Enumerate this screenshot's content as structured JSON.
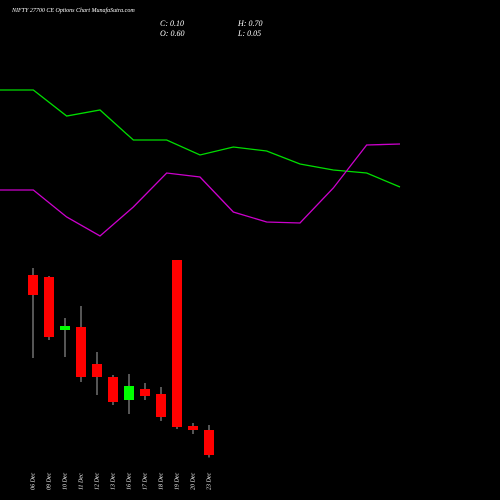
{
  "chart_data": [
    {
      "type": "candlestick",
      "title": "NIFTY 27700 CE Options Chart MunafaSutra.com",
      "annotations": [
        "C: 0.10",
        "H: 0.70",
        "O: 0.60",
        "L: 0.05"
      ],
      "categories": [
        "06 Dec",
        "09 Dec",
        "10 Dec",
        "11 Dec",
        "12 Dec",
        "13 Dec",
        "16 Dec",
        "17 Dec",
        "18 Dec",
        "19 Dec",
        "20 Dec",
        "23 Dec"
      ],
      "open": [
        3.7,
        3.66,
        2.6,
        2.66,
        1.92,
        1.66,
        1.2,
        1.42,
        1.32,
        4.0,
        0.68,
        0.6
      ],
      "high": [
        3.84,
        3.68,
        2.84,
        3.08,
        2.16,
        1.7,
        1.72,
        1.54,
        1.46,
        4.0,
        0.74,
        0.7
      ],
      "low": [
        2.04,
        2.4,
        2.06,
        1.56,
        1.3,
        1.1,
        0.92,
        1.2,
        0.78,
        0.62,
        0.52,
        0.05
      ],
      "close": [
        3.3,
        2.46,
        2.68,
        1.66,
        1.66,
        1.16,
        1.48,
        1.28,
        0.86,
        0.66,
        0.6,
        0.1
      ],
      "up_color": "#00ff00",
      "down_color": "#ff0000",
      "ylim": [
        0,
        4.2
      ]
    },
    {
      "type": "line",
      "series": [
        {
          "color": "#00dd00",
          "values": [
            80,
            80,
            67,
            70,
            55,
            55,
            47.5,
            51.5,
            49.5,
            43,
            40,
            38.5,
            31.5
          ]
        },
        {
          "color": "#cc00cc",
          "values": [
            30,
            30,
            16.5,
            7,
            21.5,
            38.5,
            36.5,
            19,
            14,
            13.5,
            31,
            52.5,
            53
          ]
        }
      ],
      "ylim": [
        0,
        100
      ]
    }
  ]
}
